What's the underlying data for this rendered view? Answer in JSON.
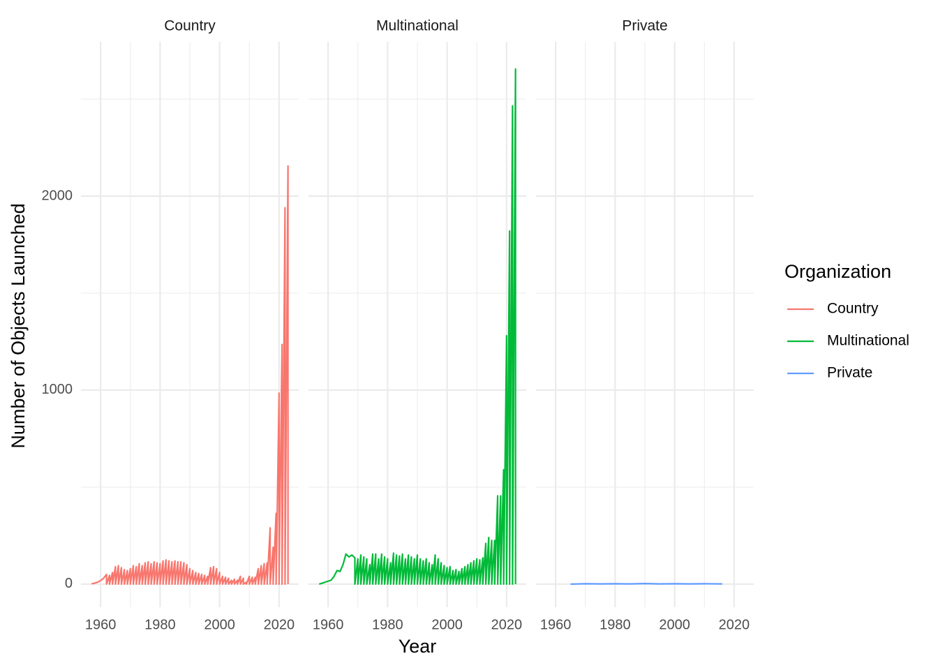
{
  "chart_data": {
    "type": "line",
    "xlabel": "Year",
    "ylabel": "Number of Objects Launched",
    "legend_title": "Organization",
    "xlim": [
      1953.4,
      2026.6
    ],
    "xticks": [
      1960,
      1980,
      2000,
      2020
    ],
    "x_minor_grid": [
      1970,
      1990,
      2010
    ],
    "ylim": [
      -119,
      2795
    ],
    "yticks": [
      0,
      1000,
      2000
    ],
    "y_minor_grid": [
      500,
      1500,
      2500
    ],
    "grid": true,
    "series": [
      {
        "name": "Country",
        "color": "#f8766d",
        "x": [
          1957,
          1958,
          1959,
          1960,
          1961,
          1962,
          1962,
          1963,
          1963,
          1964,
          1964,
          1965,
          1965,
          1966,
          1966,
          1967,
          1967,
          1968,
          1968,
          1969,
          1969,
          1970,
          1970,
          1971,
          1971,
          1972,
          1972,
          1973,
          1973,
          1974,
          1974,
          1975,
          1975,
          1976,
          1976,
          1977,
          1977,
          1978,
          1978,
          1979,
          1979,
          1980,
          1980,
          1981,
          1981,
          1982,
          1982,
          1983,
          1983,
          1984,
          1984,
          1985,
          1985,
          1986,
          1986,
          1987,
          1987,
          1988,
          1988,
          1989,
          1989,
          1990,
          1990,
          1991,
          1991,
          1992,
          1992,
          1993,
          1993,
          1994,
          1994,
          1995,
          1995,
          1996,
          1996,
          1997,
          1997,
          1998,
          1998,
          1999,
          1999,
          2000,
          2000,
          2001,
          2001,
          2002,
          2002,
          2003,
          2003,
          2004,
          2004,
          2005,
          2005,
          2006,
          2006,
          2007,
          2007,
          2008,
          2008,
          2009,
          2009,
          2010,
          2010,
          2011,
          2011,
          2012,
          2012,
          2013,
          2013,
          2014,
          2014,
          2015,
          2015,
          2016,
          2016,
          2017,
          2017,
          2018,
          2018,
          2019,
          2019,
          2020,
          2020,
          2021,
          2021,
          2022,
          2022,
          2023,
          2023
        ],
        "values": [
          2,
          5,
          10,
          18,
          30,
          50,
          0,
          45,
          0,
          60,
          0,
          90,
          0,
          95,
          0,
          85,
          0,
          75,
          0,
          70,
          0,
          80,
          0,
          95,
          0,
          90,
          0,
          105,
          0,
          95,
          0,
          110,
          0,
          115,
          0,
          105,
          0,
          115,
          0,
          110,
          0,
          105,
          0,
          120,
          0,
          125,
          0,
          120,
          0,
          115,
          0,
          120,
          0,
          115,
          0,
          115,
          0,
          110,
          0,
          100,
          0,
          80,
          0,
          70,
          0,
          60,
          0,
          55,
          0,
          50,
          0,
          45,
          0,
          40,
          0,
          85,
          0,
          90,
          0,
          80,
          0,
          60,
          0,
          40,
          0,
          35,
          0,
          30,
          0,
          20,
          0,
          25,
          0,
          20,
          0,
          40,
          0,
          30,
          0,
          10,
          0,
          40,
          0,
          35,
          0,
          35,
          0,
          80,
          0,
          95,
          0,
          105,
          0,
          110,
          0,
          290,
          0,
          190,
          0,
          365,
          0,
          985,
          0,
          1235,
          0,
          1940,
          0,
          2155,
          0
        ]
      },
      {
        "name": "Multinational",
        "color": "#00ba38",
        "x": [
          1957,
          1958,
          1959,
          1960,
          1961,
          1962,
          1963,
          1964,
          1965,
          1966,
          1967,
          1968,
          1969,
          1969,
          1970,
          1970,
          1971,
          1971,
          1972,
          1972,
          1973,
          1973,
          1974,
          1974,
          1975,
          1975,
          1976,
          1976,
          1977,
          1977,
          1978,
          1978,
          1979,
          1979,
          1980,
          1980,
          1981,
          1981,
          1982,
          1982,
          1983,
          1983,
          1984,
          1984,
          1985,
          1985,
          1986,
          1986,
          1987,
          1987,
          1988,
          1988,
          1989,
          1989,
          1990,
          1990,
          1991,
          1991,
          1992,
          1992,
          1993,
          1993,
          1994,
          1994,
          1995,
          1995,
          1996,
          1996,
          1997,
          1997,
          1998,
          1998,
          1999,
          1999,
          2000,
          2000,
          2001,
          2001,
          2002,
          2002,
          2003,
          2003,
          2004,
          2004,
          2005,
          2005,
          2006,
          2006,
          2007,
          2007,
          2008,
          2008,
          2009,
          2009,
          2010,
          2010,
          2011,
          2011,
          2012,
          2012,
          2013,
          2013,
          2014,
          2014,
          2015,
          2015,
          2016,
          2016,
          2017,
          2017,
          2018,
          2018,
          2019,
          2019,
          2020,
          2020,
          2021,
          2021,
          2022,
          2022,
          2023,
          2023
        ],
        "values": [
          0,
          5,
          10,
          15,
          20,
          40,
          70,
          65,
          100,
          155,
          140,
          150,
          135,
          0,
          130,
          0,
          150,
          0,
          140,
          0,
          130,
          0,
          100,
          0,
          155,
          0,
          155,
          0,
          130,
          0,
          155,
          0,
          140,
          0,
          130,
          0,
          110,
          0,
          160,
          0,
          150,
          0,
          145,
          0,
          155,
          0,
          130,
          0,
          150,
          0,
          140,
          0,
          130,
          0,
          150,
          0,
          130,
          0,
          120,
          0,
          130,
          0,
          110,
          0,
          100,
          0,
          150,
          0,
          130,
          0,
          110,
          0,
          95,
          0,
          85,
          0,
          90,
          0,
          70,
          0,
          75,
          0,
          65,
          0,
          80,
          0,
          90,
          0,
          100,
          0,
          110,
          0,
          120,
          0,
          130,
          0,
          125,
          0,
          135,
          0,
          210,
          0,
          240,
          0,
          225,
          0,
          225,
          0,
          455,
          0,
          455,
          0,
          590,
          0,
          1280,
          0,
          1820,
          0,
          2465,
          0,
          2655,
          0
        ]
      },
      {
        "name": "Private",
        "color": "#619cff",
        "x": [
          1965,
          1970,
          1975,
          1980,
          1985,
          1990,
          1995,
          2000,
          2005,
          2010,
          2016
        ],
        "values": [
          0,
          2,
          1,
          2,
          1,
          3,
          1,
          2,
          1,
          2,
          1
        ]
      }
    ]
  }
}
